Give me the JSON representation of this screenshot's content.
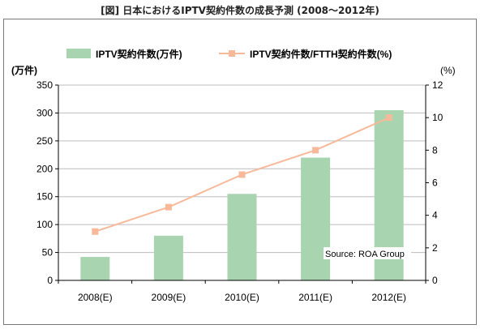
{
  "page_title": "[図] 日本におけるIPTV契約件数の成長予測 (2008～2012年)",
  "chart_data": {
    "type": "bar+line",
    "categories": [
      "2008(E)",
      "2009(E)",
      "2010(E)",
      "2011(E)",
      "2012(E)"
    ],
    "series": [
      {
        "name": "IPTV契約件数(万件)",
        "type": "bar",
        "axis": "left",
        "values": [
          42,
          80,
          155,
          220,
          305
        ],
        "color": "#a8d4b0"
      },
      {
        "name": "IPTV契約件数/FTTH契約件数(%)",
        "type": "line",
        "axis": "right",
        "values": [
          3.0,
          4.5,
          6.5,
          8.0,
          10.0
        ],
        "color": "#f7b99a"
      }
    ],
    "ylabel_left": "(万件)",
    "ylabel_right": "(%)",
    "ylim_left": [
      0,
      350
    ],
    "yticks_left": [
      0,
      50,
      100,
      150,
      200,
      250,
      300,
      350
    ],
    "ylim_right": [
      0,
      12
    ],
    "yticks_right": [
      0,
      2,
      4,
      6,
      8,
      10,
      12
    ],
    "grid": "horizontal",
    "legend": "top",
    "annotation": "Source: ROA Group"
  }
}
